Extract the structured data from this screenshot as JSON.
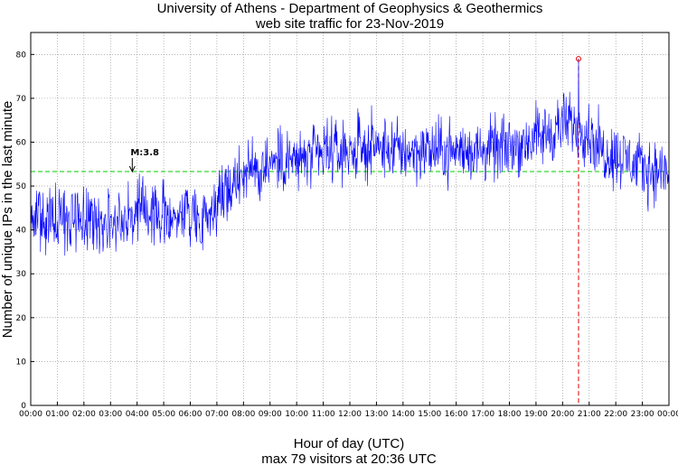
{
  "chart_data": {
    "type": "line",
    "title": "University of Athens - Department of Geophysics & Geothermics",
    "subtitle": "web site traffic for 23-Nov-2019",
    "xlabel": "Hour of day (UTC)",
    "ylabel": "Number of unique IPs in the last minute",
    "footer": "max 79 visitors at 20:36 UTC",
    "xlim": [
      0,
      24
    ],
    "ylim": [
      0,
      85
    ],
    "x_tick_labels": [
      "00:00",
      "01:00",
      "02:00",
      "03:00",
      "04:00",
      "05:00",
      "06:00",
      "07:00",
      "08:00",
      "09:00",
      "10:00",
      "11:00",
      "12:00",
      "13:00",
      "14:00",
      "15:00",
      "16:00",
      "17:00",
      "18:00",
      "19:00",
      "20:00",
      "21:00",
      "22:00",
      "23:00",
      "00:00"
    ],
    "y_ticks": [
      0,
      10,
      20,
      30,
      40,
      50,
      60,
      70,
      80
    ],
    "grid": true,
    "series": [
      {
        "color": "#0000ff",
        "trend_hours": [
          0,
          0.5,
          1,
          2,
          3,
          4,
          5,
          6,
          6.5,
          7,
          7.5,
          8,
          9,
          10,
          11,
          12,
          13,
          14,
          15,
          16,
          17,
          18,
          19,
          19.5,
          20,
          20.5,
          21,
          21.5,
          22,
          22.5,
          23,
          24
        ],
        "trend_values": [
          46,
          42,
          43,
          42,
          42,
          44,
          43,
          44,
          43,
          46,
          50,
          53,
          55,
          56,
          57,
          58,
          59,
          58,
          58,
          58,
          58,
          59,
          61,
          62,
          64,
          64,
          62,
          58,
          57,
          56,
          54,
          53
        ],
        "noise_amplitude": 5
      }
    ],
    "reference_lines": [
      {
        "orientation": "horizontal",
        "value": 53.3,
        "color": "#00cc00",
        "style": "dashed"
      },
      {
        "orientation": "vertical",
        "value": 20.6,
        "color": "#dd0000",
        "style": "dashed"
      }
    ],
    "max_point": {
      "x": 20.6,
      "y": 79,
      "color": "#dd0000"
    },
    "annotations": [
      {
        "text": "M:3.8",
        "x": 3.75,
        "y": 57
      }
    ]
  }
}
